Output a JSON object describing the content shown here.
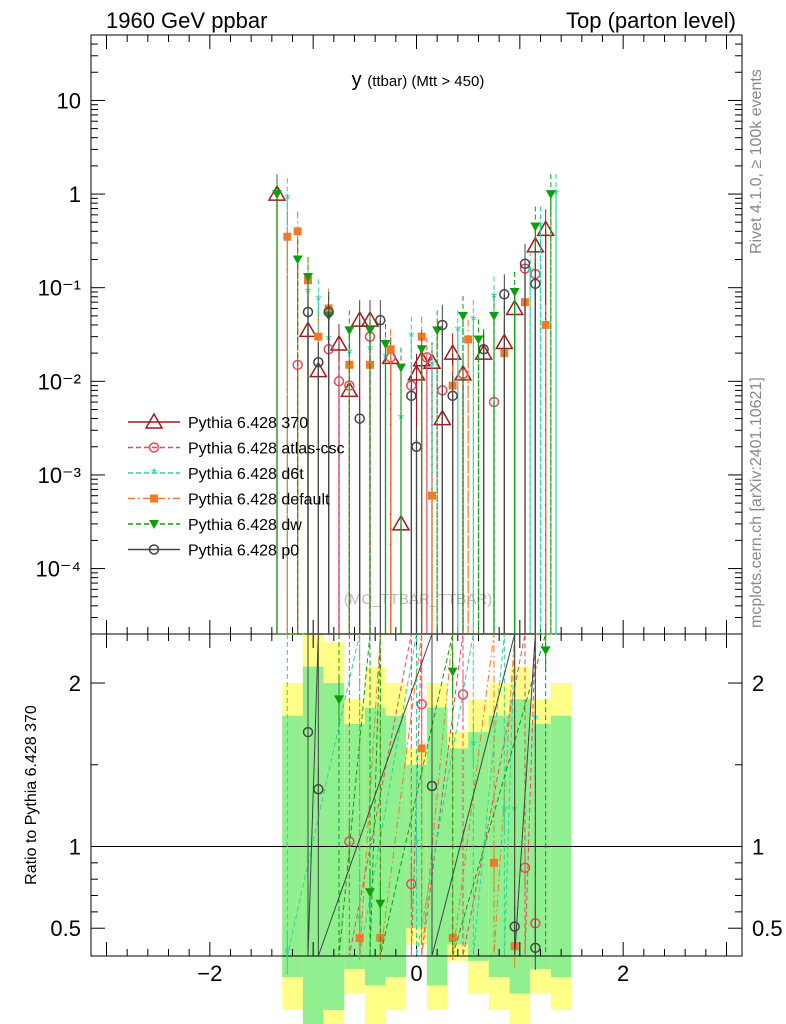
{
  "header": {
    "left": "1960 GeV ppbar",
    "right": "Top (parton level)"
  },
  "side_labels": {
    "rivet": "Rivet 4.1.0, ≥ 100k events",
    "mcplots": "mcplots.cern.ch [arXiv:2401.10621]"
  },
  "chart_data": {
    "type": "line",
    "title": "y (ttbar) (Mtt > 450)",
    "title_main": "y",
    "title_sub": "(ttbar) (Mtt > 450)",
    "watermark": "(MC_TTBAR_TTBAR)",
    "xlabel": "",
    "ylabel_ratio": "Ratio to Pythia 6.428 370",
    "xlim": [
      -3.15,
      3.15
    ],
    "ylim_main": [
      2e-05,
      50
    ],
    "ylim_ratio": [
      0.33,
      2.3
    ],
    "x_ticks": [
      "−2",
      "0",
      "2"
    ],
    "y_ticks_main": [
      "10",
      "1",
      "10⁻¹",
      "10⁻²",
      "10⁻³",
      "10⁻⁴"
    ],
    "y_ticks_ratio": [
      "2",
      "1",
      "0.5"
    ],
    "legend": [
      "Pythia 6.428 370",
      "Pythia 6.428 atlas-csc",
      "Pythia 6.428 d6t",
      "Pythia 6.428 default",
      "Pythia 6.428 dw",
      "Pythia 6.428 p0"
    ],
    "colors": {
      "370": "#9b1c1c",
      "atlas-csc": "#e8465f",
      "d6t": "#2fd2a0",
      "default": "#f07a2a",
      "dw": "#0e9e0e",
      "p0": "#444444",
      "band_yellow": "#ffff88",
      "band_green": "#90f090"
    },
    "series": [
      {
        "name": "Pythia 6.428 370",
        "x": [
          -1.35,
          -1.05,
          -0.95,
          -0.75,
          -0.65,
          -0.55,
          -0.45,
          -0.25,
          -0.15,
          0.0,
          0.05,
          0.15,
          0.25,
          0.35,
          0.45,
          0.65,
          0.85,
          0.95,
          1.15,
          1.25
        ],
        "y": [
          1.0,
          0.035,
          0.013,
          0.025,
          0.008,
          0.045,
          0.045,
          0.018,
          0.0003,
          0.012,
          0.017,
          0.016,
          0.004,
          0.02,
          0.012,
          0.02,
          0.026,
          0.06,
          0.28,
          0.42
        ]
      },
      {
        "name": "Pythia 6.428 atlas-csc",
        "x": [
          -1.15,
          -0.85,
          -0.75,
          -0.65,
          -0.45,
          -0.25,
          -0.05,
          0.1,
          0.25,
          0.45,
          0.75,
          1.05,
          1.15
        ],
        "y": [
          0.015,
          0.022,
          0.01,
          0.009,
          0.03,
          0.018,
          0.009,
          0.018,
          0.008,
          0.012,
          0.006,
          0.16,
          0.14
        ]
      },
      {
        "name": "Pythia 6.428 d6t",
        "x": [
          -1.25,
          -1.05,
          -0.95,
          -0.85,
          -0.65,
          -0.45,
          -0.3,
          -0.15,
          -0.05,
          0.15,
          0.4,
          0.55,
          0.75,
          0.95,
          1.1,
          1.2,
          1.35
        ],
        "y": [
          0.9,
          0.09,
          0.075,
          0.028,
          0.02,
          0.022,
          0.018,
          0.004,
          0.03,
          0.015,
          0.035,
          0.045,
          0.08,
          0.09,
          0.15,
          0.45,
          1.0
        ]
      },
      {
        "name": "Pythia 6.428 default",
        "x": [
          -1.25,
          -1.15,
          -1.05,
          -0.95,
          -0.85,
          -0.65,
          -0.45,
          -0.25,
          0.05,
          0.15,
          0.35,
          0.5,
          0.85,
          1.05,
          1.25
        ],
        "y": [
          0.35,
          0.4,
          0.12,
          0.03,
          0.06,
          0.015,
          0.015,
          0.022,
          0.03,
          0.0006,
          0.009,
          0.028,
          0.02,
          0.07,
          0.04
        ]
      },
      {
        "name": "Pythia 6.428 dw",
        "x": [
          -1.35,
          -1.15,
          -1.05,
          -0.85,
          -0.65,
          -0.45,
          -0.3,
          -0.15,
          0.05,
          0.2,
          0.45,
          0.6,
          0.75,
          0.95,
          1.15,
          1.3
        ],
        "y": [
          1.0,
          0.2,
          0.13,
          0.05,
          0.035,
          0.035,
          0.025,
          0.014,
          0.022,
          0.035,
          0.05,
          0.028,
          0.05,
          0.09,
          0.45,
          1.0
        ]
      },
      {
        "name": "Pythia 6.428 p0",
        "x": [
          -1.05,
          -0.95,
          -0.85,
          -0.55,
          -0.35,
          -0.05,
          0.0,
          0.25,
          0.35,
          0.65,
          0.85,
          1.05,
          1.15
        ],
        "y": [
          0.055,
          0.016,
          0.055,
          0.004,
          0.045,
          0.007,
          0.002,
          0.04,
          0.007,
          0.022,
          0.085,
          0.18,
          0.11
        ]
      }
    ],
    "ratio_series": [
      {
        "name": "Pythia 6.428 atlas-csc",
        "x": [
          -0.65,
          -0.05,
          0.05,
          0.45,
          1.05,
          1.15
        ],
        "y": [
          1.03,
          0.77,
          1.87,
          1.93,
          0.87,
          0.53
        ]
      },
      {
        "name": "Pythia 6.428 d6t",
        "x": [
          -1.25,
          -0.55,
          0.0,
          0.55,
          0.85,
          0.95,
          1.15
        ],
        "y": [
          0.35,
          0.56,
          1.02,
          1.62,
          1.22,
          1.22,
          1.78
        ]
      },
      {
        "name": "Pythia 6.428 default",
        "x": [
          -0.55,
          -0.35,
          0.05,
          0.35,
          0.75,
          0.95
        ],
        "y": [
          0.44,
          0.44,
          1.6,
          0.44,
          0.9,
          0.39
        ]
      },
      {
        "name": "Pythia 6.428 dw",
        "x": [
          -0.75,
          -0.45,
          -0.35,
          0.35,
          1.25
        ],
        "y": [
          1.9,
          0.72,
          0.65,
          2.07,
          2.2
        ]
      },
      {
        "name": "Pythia 6.428 p0",
        "x": [
          -1.05,
          -0.95,
          0.15,
          0.95,
          1.15
        ],
        "y": [
          1.7,
          1.35,
          1.37,
          0.51,
          0.38
        ]
      }
    ]
  }
}
